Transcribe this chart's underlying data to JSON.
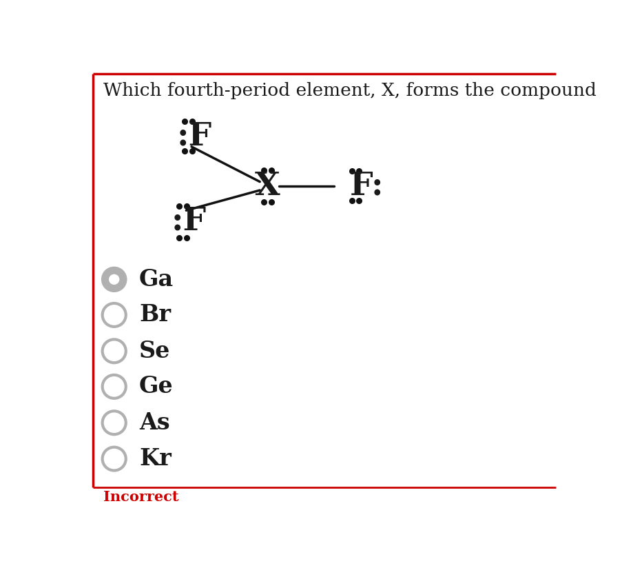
{
  "title": "Which fourth-period element, X, forms the compound",
  "title_fontsize": 19,
  "title_color": "#1a1a1a",
  "background_color": "#ffffff",
  "border_color": "#cc0000",
  "options": [
    "Ga",
    "Br",
    "Se",
    "Ge",
    "As",
    "Kr"
  ],
  "selected_index": 0,
  "selected_fill": "#b0b0b0",
  "unselected_fill": "#ffffff",
  "circle_edge_color": "#b0b0b0",
  "option_fontsize": 24,
  "incorrect_text": "Incorrect",
  "incorrect_color": "#cc0000",
  "incorrect_fontsize": 15,
  "lewis_fontsize": 34,
  "dot_color": "#111111",
  "line_color": "#111111",
  "dot_size": 5.5
}
